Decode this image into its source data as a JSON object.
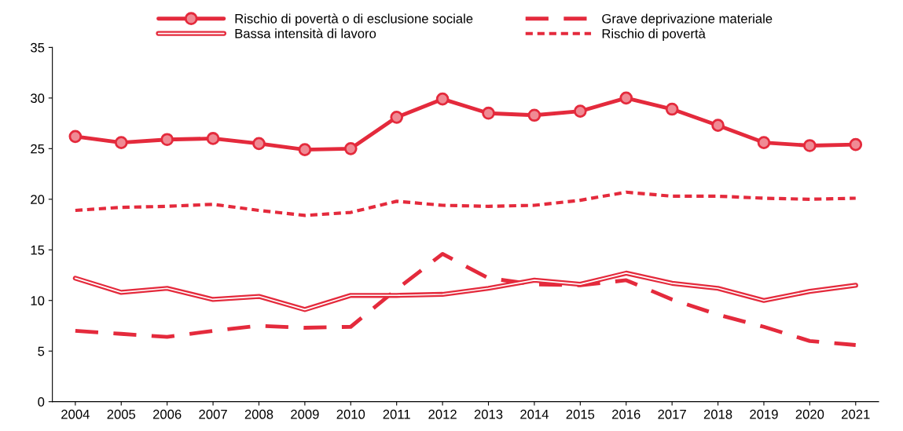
{
  "chart_data": {
    "type": "line",
    "categories": [
      "2004",
      "2005",
      "2006",
      "2007",
      "2008",
      "2009",
      "2010",
      "2011",
      "2012",
      "2013",
      "2014",
      "2015",
      "2016",
      "2017",
      "2018",
      "2019",
      "2020",
      "2021"
    ],
    "ylim": [
      0,
      35
    ],
    "yticks": [
      0,
      5,
      10,
      15,
      20,
      25,
      30,
      35
    ],
    "grid": false,
    "legend": "top",
    "series": [
      {
        "name": "Rischio di povertà o di esclusione sociale",
        "color": "#e42a3c",
        "line_style": "solid",
        "marker": "circle",
        "values": [
          26.2,
          25.6,
          25.9,
          26.0,
          25.5,
          24.9,
          25.0,
          28.1,
          29.9,
          28.5,
          28.3,
          28.7,
          30.0,
          28.9,
          27.3,
          25.6,
          25.3,
          25.4
        ]
      },
      {
        "name": "Grave deprivazione materiale",
        "color": "#e42a3c",
        "line_style": "dashed",
        "marker": "none",
        "values": [
          7.0,
          6.7,
          6.4,
          7.0,
          7.5,
          7.3,
          7.4,
          11.1,
          14.6,
          12.2,
          11.6,
          11.5,
          12.0,
          10.1,
          8.6,
          7.4,
          6.0,
          5.6
        ]
      },
      {
        "name": "Bassa intensità di lavoro",
        "color": "#e42a3c",
        "line_style": "solid",
        "marker": "none",
        "values": [
          12.2,
          10.8,
          11.2,
          10.1,
          10.4,
          9.1,
          10.5,
          10.5,
          10.6,
          11.2,
          12.0,
          11.6,
          12.7,
          11.7,
          11.2,
          10.0,
          10.9,
          11.5
        ]
      },
      {
        "name": "Rischio di povertà",
        "color": "#e42a3c",
        "line_style": "dotted",
        "marker": "none",
        "values": [
          18.9,
          19.2,
          19.3,
          19.5,
          18.9,
          18.4,
          18.7,
          19.8,
          19.4,
          19.3,
          19.4,
          19.9,
          20.7,
          20.3,
          20.3,
          20.1,
          20.0,
          20.1
        ]
      }
    ]
  }
}
